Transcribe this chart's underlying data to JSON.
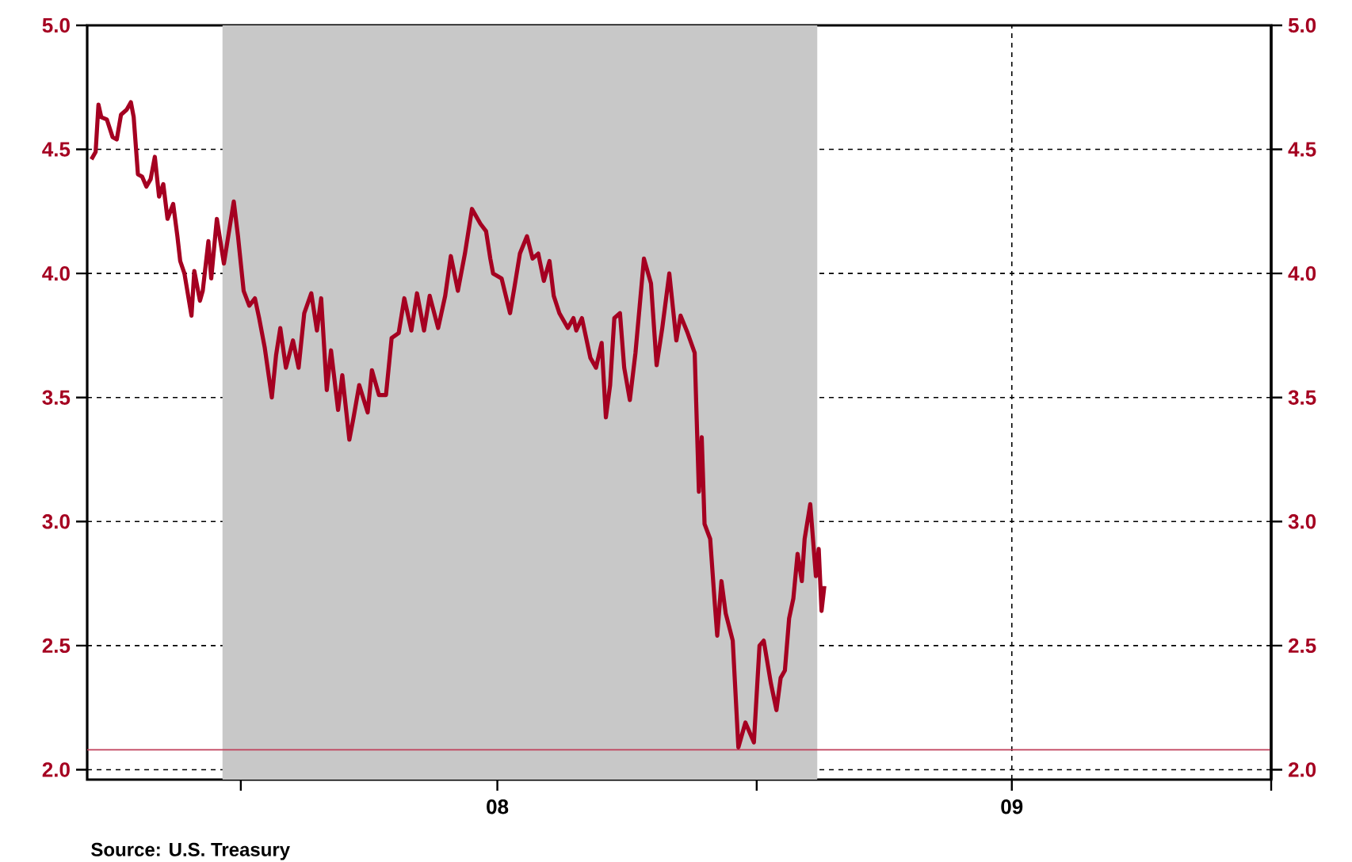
{
  "chart_data": {
    "type": "line",
    "x": [
      "2007-09-17",
      "2007-09-20",
      "2007-09-22",
      "2007-09-24",
      "2007-09-28",
      "2007-10-02",
      "2007-10-05",
      "2007-10-08",
      "2007-10-12",
      "2007-10-15",
      "2007-10-17",
      "2007-10-20",
      "2007-10-23",
      "2007-10-26",
      "2007-10-29",
      "2007-11-01",
      "2007-11-04",
      "2007-11-07",
      "2007-11-10",
      "2007-11-14",
      "2007-11-17",
      "2007-11-19",
      "2007-11-22",
      "2007-11-27",
      "2007-11-29",
      "2007-12-03",
      "2007-12-05",
      "2007-12-09",
      "2007-12-11",
      "2007-12-15",
      "2007-12-20",
      "2007-12-27",
      "2007-12-30",
      "2008-01-03",
      "2008-01-07",
      "2008-01-11",
      "2008-01-14",
      "2008-01-18",
      "2008-01-23",
      "2008-01-26",
      "2008-01-29",
      "2008-02-02",
      "2008-02-07",
      "2008-02-11",
      "2008-02-15",
      "2008-02-20",
      "2008-02-24",
      "2008-02-27",
      "2008-03-02",
      "2008-03-05",
      "2008-03-10",
      "2008-03-13",
      "2008-03-18",
      "2008-03-21",
      "2008-03-25",
      "2008-03-31",
      "2008-04-03",
      "2008-04-08",
      "2008-04-13",
      "2008-04-17",
      "2008-04-22",
      "2008-04-26",
      "2008-05-01",
      "2008-05-05",
      "2008-05-10",
      "2008-05-14",
      "2008-05-20",
      "2008-05-25",
      "2008-05-29",
      "2008-06-03",
      "2008-06-08",
      "2008-06-13",
      "2008-06-19",
      "2008-06-23",
      "2008-06-26",
      "2008-06-28",
      "2008-07-04",
      "2008-07-10",
      "2008-07-13",
      "2008-07-17",
      "2008-07-22",
      "2008-07-26",
      "2008-07-30",
      "2008-08-03",
      "2008-08-07",
      "2008-08-10",
      "2008-08-14",
      "2008-08-20",
      "2008-08-24",
      "2008-08-26",
      "2008-08-30",
      "2008-09-05",
      "2008-09-09",
      "2008-09-13",
      "2008-09-16",
      "2008-09-19",
      "2008-09-22",
      "2008-09-26",
      "2008-09-29",
      "2008-10-03",
      "2008-10-07",
      "2008-10-13",
      "2008-10-18",
      "2008-10-22",
      "2008-10-26",
      "2008-10-31",
      "2008-11-05",
      "2008-11-08",
      "2008-11-13",
      "2008-11-18",
      "2008-11-21",
      "2008-11-23",
      "2008-11-25",
      "2008-11-29",
      "2008-12-02",
      "2008-12-04",
      "2008-12-07",
      "2008-12-10",
      "2008-12-15",
      "2008-12-19",
      "2008-12-24",
      "2008-12-30",
      "2009-01-03",
      "2009-01-06",
      "2009-01-11",
      "2009-01-15",
      "2009-01-18",
      "2009-01-21",
      "2009-01-24",
      "2009-01-27",
      "2009-01-30",
      "2009-02-02",
      "2009-02-04",
      "2009-02-08",
      "2009-02-12",
      "2009-02-14",
      "2009-02-16",
      "2009-02-18"
    ],
    "series": [
      {
        "color": "#a50021",
        "values": [
          4.46,
          4.49,
          4.68,
          4.63,
          4.62,
          4.55,
          4.54,
          4.64,
          4.66,
          4.69,
          4.63,
          4.4,
          4.39,
          4.35,
          4.38,
          4.47,
          4.31,
          4.36,
          4.22,
          4.28,
          4.15,
          4.05,
          4.0,
          3.83,
          4.01,
          3.89,
          3.93,
          4.13,
          3.98,
          4.22,
          4.04,
          4.29,
          4.15,
          3.93,
          3.87,
          3.9,
          3.82,
          3.7,
          3.5,
          3.67,
          3.78,
          3.62,
          3.73,
          3.62,
          3.84,
          3.92,
          3.77,
          3.9,
          3.53,
          3.69,
          3.45,
          3.59,
          3.33,
          3.42,
          3.55,
          3.44,
          3.61,
          3.51,
          3.51,
          3.74,
          3.76,
          3.9,
          3.77,
          3.92,
          3.77,
          3.91,
          3.78,
          3.91,
          4.07,
          3.93,
          4.08,
          4.26,
          4.2,
          4.17,
          4.06,
          4.0,
          3.98,
          3.84,
          3.94,
          4.08,
          4.15,
          4.06,
          4.08,
          3.97,
          4.05,
          3.91,
          3.84,
          3.78,
          3.82,
          3.77,
          3.82,
          3.66,
          3.62,
          3.72,
          3.42,
          3.55,
          3.82,
          3.84,
          3.62,
          3.49,
          3.68,
          4.06,
          3.96,
          3.63,
          3.78,
          4.0,
          3.73,
          3.83,
          3.76,
          3.68,
          3.12,
          3.34,
          2.99,
          2.93,
          2.69,
          2.54,
          2.76,
          2.63,
          2.52,
          2.09,
          2.19,
          2.11,
          2.5,
          2.52,
          2.35,
          2.24,
          2.37,
          2.4,
          2.61,
          2.69,
          2.87,
          2.76,
          2.93,
          3.07,
          2.78,
          2.89,
          2.64,
          2.74
        ]
      }
    ],
    "xlim": [
      "2007-09-14",
      "2010-01-01"
    ],
    "xticks": [
      {
        "value": "2008-01-01",
        "label": null
      },
      {
        "value": "2008-07-01",
        "label": "08"
      },
      {
        "value": "2009-01-01",
        "label": null
      },
      {
        "value": "2009-07-01",
        "label": "09"
      },
      {
        "value": "2010-01-01",
        "label": null
      }
    ],
    "ylim": [
      1.96,
      5.0
    ],
    "yticks": [
      {
        "value": 2,
        "label": "2.0"
      },
      {
        "value": 2.5,
        "label": "2.5"
      },
      {
        "value": 3,
        "label": "3.0"
      },
      {
        "value": 3.5,
        "label": "3.5"
      },
      {
        "value": 4,
        "label": "4.0"
      },
      {
        "value": 4.5,
        "label": "4.5"
      },
      {
        "value": 5,
        "label": "5.0"
      }
    ],
    "y2lim": [
      1.96,
      5.0
    ],
    "y2ticks": [
      {
        "value": 2,
        "label": "2.0"
      },
      {
        "value": 2.5,
        "label": "2.5"
      },
      {
        "value": 3,
        "label": "3.0"
      },
      {
        "value": 3.5,
        "label": "3.5"
      },
      {
        "value": 4,
        "label": "4.0"
      },
      {
        "value": 4.5,
        "label": "4.5"
      },
      {
        "value": 5,
        "label": "5.0"
      }
    ],
    "grid": true,
    "ref_lines": [
      {
        "axis": "y",
        "value": 2.08,
        "color": "#c0405a"
      }
    ],
    "bands": [
      {
        "axis": "x",
        "from": "2007-12-19",
        "to": "2009-02-13",
        "color": "#c8c8c8"
      }
    ],
    "annotations": [
      "Source:  U.S. Treasury"
    ]
  }
}
